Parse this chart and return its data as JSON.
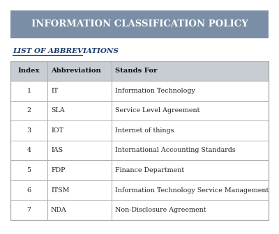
{
  "title": "INFORMATION CLASSIFICATION POLICY",
  "title_bg": "#7a8fa6",
  "title_color": "#ffffff",
  "subtitle": "LIST OF ABBREVIATIONS",
  "subtitle_color": "#1a3a6b",
  "table_headers": [
    "Index",
    "Abbreviation",
    "Stands For"
  ],
  "table_rows": [
    [
      "1",
      "IT",
      "Information Technology"
    ],
    [
      "2",
      "SLA",
      "Service Level Agreement"
    ],
    [
      "3",
      "IOT",
      "Internet of things"
    ],
    [
      "4",
      "IAS",
      "International Accounting Standards"
    ],
    [
      "5",
      "FDP",
      "Finance Department"
    ],
    [
      "6",
      "ITSM",
      "Information Technology Service Management"
    ],
    [
      "7",
      "NDA",
      "Non-Disclosure Agreement"
    ]
  ],
  "header_bg": "#c8cdd4",
  "border_color": "#aaaaaa",
  "page_bg": "#ffffff",
  "title_font_size": 9.5,
  "header_font_size": 7.2,
  "row_font_size": 6.8,
  "subtitle_font_size": 7.5
}
